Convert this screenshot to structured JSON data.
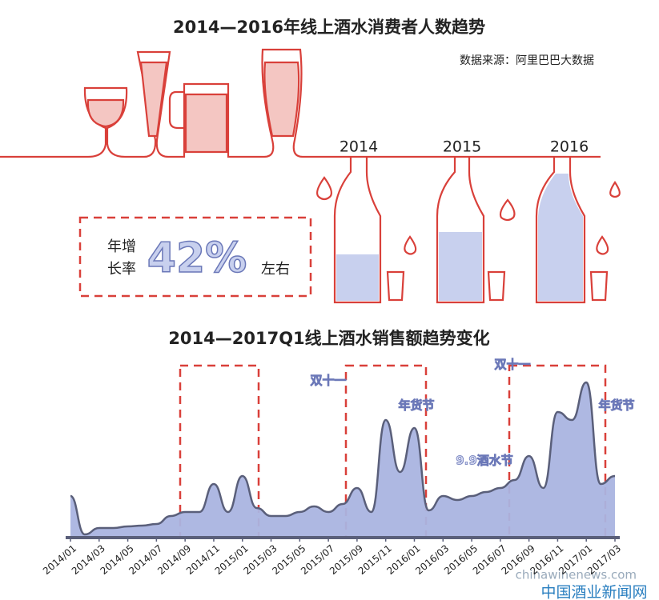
{
  "header": {
    "title": "2014—2016年线上酒水消费者人数趋势",
    "source": "数据来源：阿里巴巴大数据"
  },
  "bottles": {
    "years": [
      "2014",
      "2015",
      "2016"
    ]
  },
  "growth": {
    "line1": "年增",
    "line2": "长率",
    "value": "42%",
    "suffix": "左右"
  },
  "chart_data": {
    "type": "area",
    "title": "2014—2017Q1线上酒水销售额趋势变化",
    "categories": [
      "2014/01",
      null,
      "2014/03",
      null,
      "2014/05",
      null,
      "2014/07",
      null,
      "2014/09",
      null,
      "2014/11",
      null,
      "2015/01",
      null,
      "2015/03",
      null,
      "2015/05",
      null,
      "2015/07",
      null,
      "2015/09",
      null,
      "2015/11",
      null,
      "2016/01",
      null,
      "2016/03",
      null,
      "2016/05",
      null,
      "2016/07",
      null,
      "2016/09",
      null,
      "2016/11",
      null,
      "2017/01",
      null,
      "2017/03"
    ],
    "values": [
      26,
      2,
      6,
      6,
      7,
      7.5,
      8.5,
      13.5,
      16,
      16,
      33.5,
      16,
      38.5,
      18.5,
      13.5,
      13.5,
      16,
      19.5,
      16,
      21,
      31,
      16,
      73.5,
      41,
      68.5,
      17,
      26,
      23.5,
      26,
      28.5,
      31,
      36,
      51,
      31,
      78.5,
      73.5,
      97,
      33.5,
      38.5
    ],
    "ylim": [
      0,
      100
    ],
    "color": "#aab4e0",
    "line_color": "#5a5f7a",
    "annotations": [
      "双十一",
      "年货节",
      "9.9酒水节",
      "双十一",
      "年货节"
    ]
  },
  "watermark": {
    "url": "chinawinenews.com",
    "name": "中国酒业新闻网"
  }
}
